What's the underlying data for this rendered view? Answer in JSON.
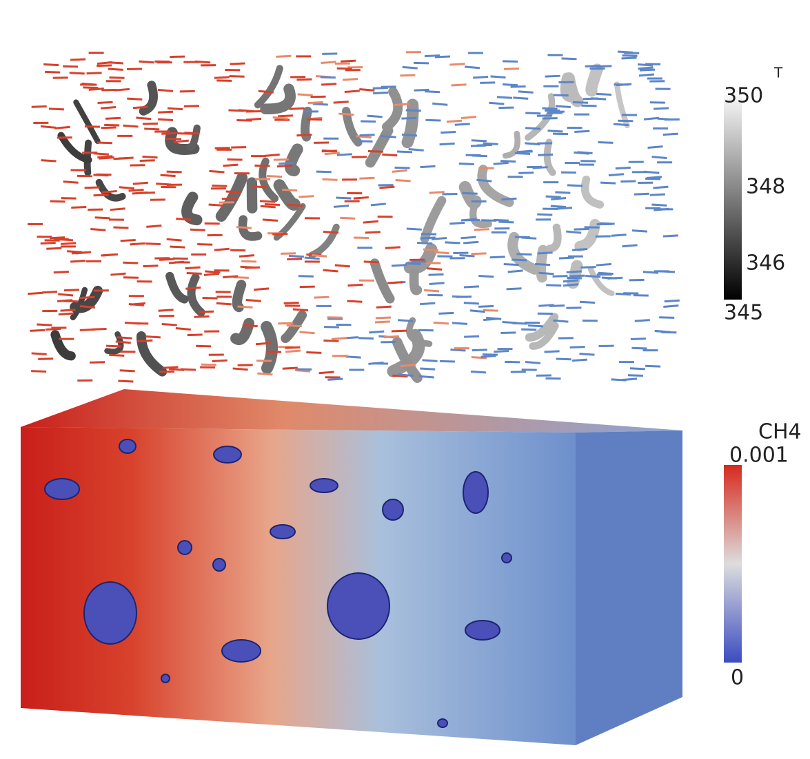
{
  "colorbars": [
    {
      "title": "T",
      "ticks": [
        350,
        348,
        346,
        345
      ]
    },
    {
      "title": "CH4",
      "ticks": [
        0.001,
        0
      ]
    }
  ]
}
